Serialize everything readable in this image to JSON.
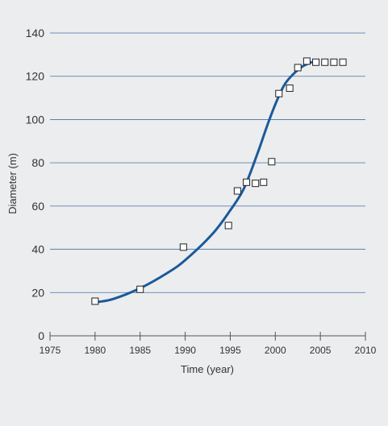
{
  "chart_data": {
    "type": "scatter",
    "title": "",
    "xlabel": "Time (year)",
    "ylabel": "Diameter (m)",
    "xlim": [
      1975,
      2010
    ],
    "ylim": [
      0,
      140
    ],
    "xticks": [
      1975,
      1980,
      1985,
      1990,
      1995,
      2000,
      2005,
      2010
    ],
    "yticks": [
      0,
      20,
      40,
      60,
      80,
      100,
      120,
      140
    ],
    "grid": "horizontal",
    "legend": "none",
    "colors": {
      "curve": "#1a5a9a",
      "grid": "#4a6fa8",
      "axis": "#555555",
      "marker": "#222222",
      "background": "#ecedee"
    },
    "series": [
      {
        "type": "scatter",
        "marker": "hollow-square",
        "x": [
          1980,
          1985,
          1989.8,
          1994.8,
          1995.8,
          1996.8,
          1997.8,
          1998.7,
          1999.6,
          2000.4,
          2001.6,
          2002.5,
          2003.5,
          2004.5,
          2005.5,
          2006.5,
          2007.5
        ],
        "y": [
          16,
          21.5,
          41,
          51,
          67,
          71,
          70.5,
          71,
          80.5,
          112,
          114.5,
          124,
          127,
          126.5,
          126.5,
          126.5,
          126.5
        ]
      },
      {
        "type": "line",
        "x": [
          1980,
          1982,
          1985,
          1988,
          1990,
          1993,
          1995,
          1996.5,
          1998,
          1999,
          2000,
          2001,
          2002,
          2003,
          2004
        ],
        "y": [
          15.5,
          17,
          22,
          29,
          35,
          47,
          58,
          68,
          84,
          96,
          107,
          116,
          121,
          124.5,
          126.5
        ]
      }
    ]
  }
}
